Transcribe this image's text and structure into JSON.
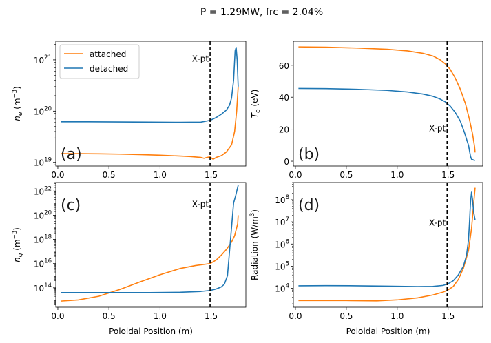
{
  "figure": {
    "title": "P = 1.29MW, frc = 2.04%",
    "colors": {
      "attached": "#ff7f0e",
      "detached": "#1f77b4",
      "xpt_line": "#000000"
    }
  },
  "chart_data": [
    {
      "type": "line",
      "panel": "(a)",
      "ylabel_base": "n",
      "ylabel_sub": "e",
      "ylabel_unit_pre": " (m",
      "ylabel_unit_sup": "−3",
      "ylabel_unit_post": ")",
      "xlabel": "",
      "yscale": "log",
      "xlim": [
        -0.02,
        1.84
      ],
      "ylim": [
        8.5e+18,
        2.3e+21
      ],
      "xticks": [
        0.0,
        0.5,
        1.0,
        1.5
      ],
      "xtick_labels": [
        "0.0",
        "0.5",
        "1.0",
        "1.5"
      ],
      "yticks": [
        1e+19,
        1e+20,
        1e+21
      ],
      "ytick_base": [
        "10",
        "10",
        "10"
      ],
      "ytick_exp": [
        "19",
        "20",
        "21"
      ],
      "xpt_x": 1.49,
      "xpt_label": "X-pt",
      "xpt_label_y": 1.05e+21,
      "legend": {
        "entries": [
          "attached",
          "detached"
        ],
        "placement": "upper-left"
      },
      "series": [
        {
          "name": "attached",
          "x": [
            0.03,
            0.2,
            0.4,
            0.6,
            0.8,
            1.0,
            1.2,
            1.3,
            1.4,
            1.43,
            1.46,
            1.49,
            1.52,
            1.55,
            1.6,
            1.65,
            1.7,
            1.73,
            1.75,
            1.765
          ],
          "y": [
            1.48e+19,
            1.48e+19,
            1.47e+19,
            1.45e+19,
            1.42e+19,
            1.38e+19,
            1.33e+19,
            1.3e+19,
            1.25e+19,
            1.2e+19,
            1.25e+19,
            1.28e+19,
            1.15e+19,
            1.25e+19,
            1.35e+19,
            1.6e+19,
            2.2e+19,
            4e+19,
            1e+20,
            3e+20
          ]
        },
        {
          "name": "detached",
          "x": [
            0.03,
            0.3,
            0.6,
            0.9,
            1.2,
            1.4,
            1.49,
            1.55,
            1.6,
            1.65,
            1.68,
            1.7,
            1.72,
            1.735,
            1.745,
            1.755,
            1.765
          ],
          "y": [
            6.2e+19,
            6.2e+19,
            6.15e+19,
            6.1e+19,
            6.05e+19,
            6.1e+19,
            6.6e+19,
            7.5e+19,
            8.7e+19,
            1.05e+20,
            1.3e+20,
            1.8e+20,
            4e+20,
            1.5e+21,
            1.75e+21,
            1e+21,
            3e+20
          ]
        }
      ]
    },
    {
      "type": "line",
      "panel": "(b)",
      "ylabel_base": "T",
      "ylabel_sub": "e",
      "ylabel_unit_pre": " (eV)",
      "ylabel_unit_sup": "",
      "ylabel_unit_post": "",
      "xlabel": "",
      "yscale": "linear",
      "xlim": [
        -0.02,
        1.84
      ],
      "ylim": [
        -3,
        75
      ],
      "xticks": [
        0.0,
        0.5,
        1.0,
        1.5
      ],
      "xtick_labels": [
        "0.0",
        "0.5",
        "1.0",
        "1.5"
      ],
      "yticks": [
        0,
        20,
        40,
        60
      ],
      "ytick_labels": [
        "0",
        "20",
        "40",
        "60"
      ],
      "xpt_x": 1.49,
      "xpt_label": "X-pt",
      "xpt_label_y": 20.5,
      "series": [
        {
          "name": "attached",
          "x": [
            0.03,
            0.3,
            0.6,
            0.9,
            1.1,
            1.25,
            1.35,
            1.42,
            1.47,
            1.52,
            1.57,
            1.62,
            1.67,
            1.71,
            1.74,
            1.76,
            1.765
          ],
          "y": [
            71.5,
            71.3,
            70.8,
            70.0,
            69.0,
            67.5,
            65.8,
            63.5,
            61.0,
            57.5,
            52.0,
            45.0,
            36.0,
            26.0,
            17.0,
            9.0,
            5.5
          ]
        },
        {
          "name": "detached",
          "x": [
            0.03,
            0.3,
            0.6,
            0.9,
            1.1,
            1.25,
            1.35,
            1.42,
            1.47,
            1.52,
            1.57,
            1.62,
            1.66,
            1.7,
            1.72,
            1.73,
            1.74,
            1.75,
            1.765
          ],
          "y": [
            45.5,
            45.4,
            45.0,
            44.3,
            43.3,
            42.0,
            40.6,
            38.9,
            37.2,
            34.5,
            30.5,
            25.0,
            18.0,
            10.0,
            3.0,
            1.2,
            1.0,
            0.7,
            0.5
          ]
        }
      ]
    },
    {
      "type": "line",
      "panel": "(c)",
      "ylabel_base": "n",
      "ylabel_sub": "g",
      "ylabel_unit_pre": " (m",
      "ylabel_unit_sup": "−3",
      "ylabel_unit_post": ")",
      "xlabel": "Poloidal Position (m)",
      "yscale": "log",
      "xlim": [
        -0.02,
        1.84
      ],
      "ylim": [
        2500000000000.0,
        5e+22
      ],
      "xticks": [
        0.0,
        0.5,
        1.0,
        1.5
      ],
      "xtick_labels": [
        "0.0",
        "0.5",
        "1.0",
        "1.5"
      ],
      "yticks": [
        100000000000000.0,
        1e+16,
        1e+18,
        1e+20,
        1e+22
      ],
      "ytick_base": [
        "10",
        "10",
        "10",
        "10",
        "10"
      ],
      "ytick_exp": [
        "14",
        "16",
        "18",
        "20",
        "22"
      ],
      "xpt_x": 1.49,
      "xpt_label": "X-pt",
      "xpt_label_y": 8e+20,
      "series": [
        {
          "name": "attached",
          "x": [
            0.03,
            0.2,
            0.4,
            0.6,
            0.8,
            1.0,
            1.2,
            1.35,
            1.45,
            1.49,
            1.55,
            1.6,
            1.65,
            1.7,
            1.73,
            1.76,
            1.765
          ],
          "y": [
            8000000000000.0,
            10000000000000.0,
            20000000000000.0,
            70000000000000.0,
            300000000000000.0,
            1200000000000000.0,
            4000000000000000.0,
            7000000000000000.0,
            9000000000000000.0,
            1e+16,
            2e+16,
            5e+16,
            1.5e+17,
            6e+17,
            2e+18,
            2e+19,
            1e+20
          ]
        },
        {
          "name": "detached",
          "x": [
            0.03,
            0.3,
            0.6,
            0.9,
            1.2,
            1.4,
            1.49,
            1.55,
            1.6,
            1.63,
            1.66,
            1.68,
            1.7,
            1.72,
            1.74,
            1.765
          ],
          "y": [
            40000000000000.0,
            40000000000000.0,
            40000000000000.0,
            40000000000000.0,
            43000000000000.0,
            50000000000000.0,
            60000000000000.0,
            80000000000000.0,
            120000000000000.0,
            200000000000000.0,
            1000000000000000.0,
            1e+17,
            1e+19,
            1e+21,
            4e+21,
            3e+22
          ]
        }
      ]
    },
    {
      "type": "line",
      "panel": "(d)",
      "ylabel_base": "Radiation (W/m",
      "ylabel_sub": "",
      "ylabel_unit_pre": "",
      "ylabel_unit_sup": "3",
      "ylabel_unit_post": ")",
      "xlabel": "Poloidal Position (m)",
      "yscale": "log",
      "xlim": [
        -0.02,
        1.84
      ],
      "ylim": [
        1400.0,
        600000000.0
      ],
      "xticks": [
        0.0,
        0.5,
        1.0,
        1.5
      ],
      "xtick_labels": [
        "0.0",
        "0.5",
        "1.0",
        "1.5"
      ],
      "yticks": [
        10000.0,
        100000.0,
        1000000.0,
        10000000.0,
        100000000.0
      ],
      "ytick_base": [
        "10",
        "10",
        "10",
        "10",
        "10"
      ],
      "ytick_exp": [
        "4",
        "5",
        "6",
        "7",
        "8"
      ],
      "xpt_x": 1.49,
      "xpt_label": "X-pt",
      "xpt_label_y": 9000000.0,
      "series": [
        {
          "name": "attached",
          "x": [
            0.03,
            0.3,
            0.5,
            0.8,
            1.0,
            1.2,
            1.35,
            1.45,
            1.49,
            1.55,
            1.6,
            1.65,
            1.7,
            1.73,
            1.75,
            1.765
          ],
          "y": [
            2800.0,
            2800.0,
            2800.0,
            2700.0,
            3000.0,
            3700.0,
            5000.0,
            6700.0,
            8000.0,
            12000.0,
            25000.0,
            80000.0,
            500000.0,
            5000000.0,
            60000000.0,
            350000000.0
          ]
        },
        {
          "name": "detached",
          "x": [
            0.03,
            0.3,
            0.6,
            0.9,
            1.2,
            1.35,
            1.45,
            1.5,
            1.55,
            1.6,
            1.65,
            1.68,
            1.7,
            1.71,
            1.72,
            1.73,
            1.74,
            1.75,
            1.765
          ],
          "y": [
            13000.0,
            13200.0,
            13000.0,
            12500.0,
            12000.0,
            12200.0,
            13500.0,
            16000.0,
            22000.0,
            40000.0,
            100000.0,
            300000.0,
            1500000.0,
            10000000.0,
            80000000.0,
            220000000.0,
            100000000.0,
            30000000.0,
            12000000.0
          ]
        }
      ]
    }
  ]
}
